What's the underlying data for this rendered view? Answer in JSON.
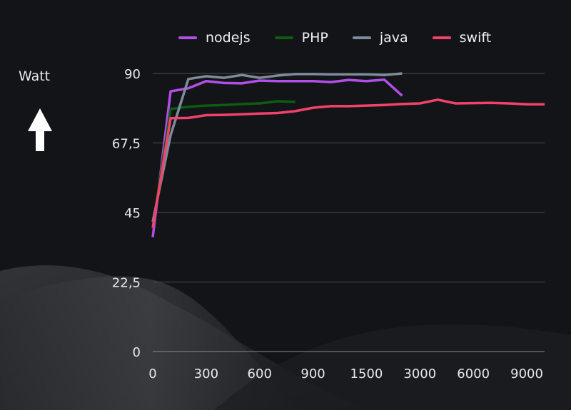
{
  "chart_data": {
    "type": "line",
    "title": "",
    "xlabel": "",
    "ylabel": "Watt",
    "ylim": [
      0,
      90
    ],
    "yticks": [
      0,
      22.5,
      45,
      67.5,
      90
    ],
    "ytick_labels": [
      "0",
      "22,5",
      "45",
      "67,5",
      "90"
    ],
    "x_tick_labels": [
      "0",
      "300",
      "600",
      "900",
      "1500",
      "3000",
      "6000",
      "9000"
    ],
    "x_tick_every": 3,
    "n_points": 23,
    "grid": true,
    "legend": "top",
    "series": [
      {
        "name": "nodejs",
        "color": "#b24fe8",
        "values": [
          37,
          84.2,
          85.2,
          87.5,
          86.9,
          86.8,
          87.7,
          87.5,
          87.5,
          87.5,
          87.2,
          87.9,
          87.5,
          88.0,
          82.8
        ]
      },
      {
        "name": "PHP",
        "color": "#0d5c10",
        "values": [
          40,
          78.5,
          79.2,
          79.6,
          79.8,
          80.1,
          80.3,
          81.0,
          80.8
        ]
      },
      {
        "name": "java",
        "color": "#7d8b9a",
        "values": [
          42,
          70,
          88.2,
          89.1,
          88.6,
          89.5,
          88.6,
          89.3,
          89.8,
          89.8,
          89.7,
          89.7,
          89.7,
          89.5,
          90.0
        ]
      },
      {
        "name": "swift",
        "color": "#f2426c",
        "values": [
          40,
          75.5,
          75.6,
          76.5,
          76.6,
          76.8,
          77.0,
          77.2,
          77.8,
          78.9,
          79.4,
          79.4,
          79.6,
          79.8,
          80.1,
          80.3,
          81.5,
          80.3,
          80.4,
          80.5,
          80.3,
          80.0,
          80.0
        ]
      }
    ]
  }
}
